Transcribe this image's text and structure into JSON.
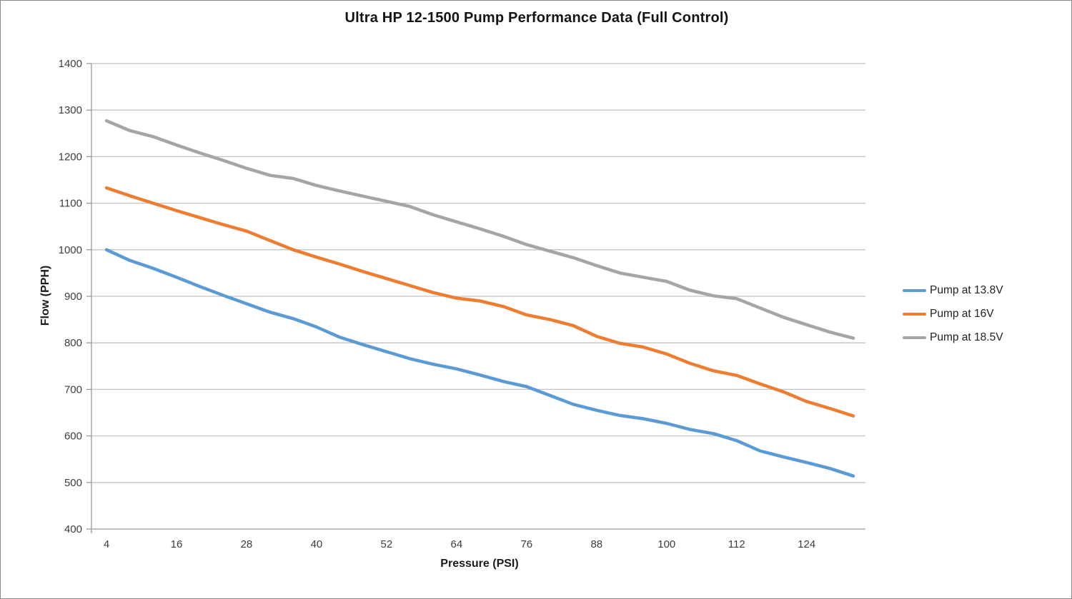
{
  "chart_data": {
    "type": "line",
    "title": "Ultra HP 12-1500 Pump Performance Data (Full Control)",
    "xlabel": "Pressure (PSI)",
    "ylabel": "Flow (PPH)",
    "x": [
      4,
      8,
      12,
      16,
      20,
      24,
      28,
      32,
      36,
      40,
      44,
      48,
      52,
      56,
      60,
      64,
      68,
      72,
      76,
      80,
      84,
      88,
      92,
      96,
      100,
      104,
      108,
      112,
      116,
      120,
      124,
      128,
      132
    ],
    "xtick_labels": [
      4,
      16,
      28,
      40,
      52,
      64,
      76,
      88,
      100,
      112,
      124
    ],
    "ytick_labels": [
      400,
      500,
      600,
      700,
      800,
      900,
      1000,
      1100,
      1200,
      1300,
      1400
    ],
    "xlim": [
      4,
      132
    ],
    "ylim": [
      400,
      1400
    ],
    "grid": "horizontal-on",
    "legend_position": "right-middle",
    "series": [
      {
        "name": "Pump at 13.8V",
        "color": "#5B9BD5",
        "values": [
          1000,
          977,
          960,
          941,
          921,
          902,
          884,
          866,
          852,
          834,
          812,
          796,
          781,
          766,
          754,
          744,
          731,
          717,
          706,
          687,
          668,
          655,
          644,
          637,
          627,
          614,
          605,
          590,
          568,
          555,
          543,
          530,
          514
        ]
      },
      {
        "name": "Pump at 16V",
        "color": "#ED7D31",
        "values": [
          1133,
          1116,
          1100,
          1084,
          1069,
          1054,
          1040,
          1020,
          1000,
          984,
          969,
          953,
          938,
          923,
          908,
          896,
          890,
          878,
          860,
          850,
          837,
          814,
          799,
          791,
          776,
          756,
          740,
          730,
          712,
          695,
          674,
          659,
          643
        ]
      },
      {
        "name": "Pump at 18.5V",
        "color": "#A5A5A5",
        "values": [
          1277,
          1256,
          1243,
          1225,
          1208,
          1192,
          1175,
          1160,
          1153,
          1138,
          1126,
          1115,
          1104,
          1093,
          1075,
          1060,
          1045,
          1029,
          1011,
          997,
          983,
          966,
          950,
          941,
          932,
          913,
          901,
          895,
          875,
          855,
          839,
          823,
          810
        ]
      }
    ],
    "style_colors": {
      "gridline": "#c3c3c3",
      "axis_line": "#9a9a9a",
      "tick_text": "#3d3d3d"
    }
  }
}
